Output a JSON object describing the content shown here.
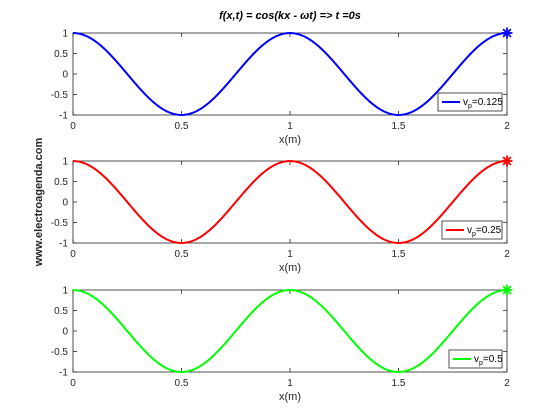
{
  "figure": {
    "title": "f(x,t) = cos(kx - ωt) => t =0s",
    "watermark": "www.electroagenda.com"
  },
  "chart_data": [
    {
      "type": "line",
      "function": "cos(2*pi*x)",
      "x_range": [
        0,
        2
      ],
      "xlim": [
        0,
        2
      ],
      "ylim": [
        -1,
        1
      ],
      "xticks": [
        "0",
        "0.5",
        "1",
        "1.5",
        "2"
      ],
      "yticks": [
        "1",
        "0.5",
        "0",
        "-0.5",
        "-1"
      ],
      "xlabel": "x(m)",
      "grid": false,
      "legend_location": "bottom-right",
      "series": [
        {
          "name": "v",
          "name_sub": "p",
          "name_suffix": "=0.125",
          "color": "#0000ff",
          "x": [
            0,
            0.5,
            1,
            1.5,
            2
          ],
          "y": [
            1,
            -1,
            1,
            -1,
            1
          ]
        }
      ],
      "marker": {
        "x": 2,
        "y": 1,
        "symbol": "asterisk",
        "color": "#0000ff"
      }
    },
    {
      "type": "line",
      "function": "cos(2*pi*x)",
      "x_range": [
        0,
        2
      ],
      "xlim": [
        0,
        2
      ],
      "ylim": [
        -1,
        1
      ],
      "xticks": [
        "0",
        "0.5",
        "1",
        "1.5",
        "2"
      ],
      "yticks": [
        "1",
        "0.5",
        "0",
        "-0.5",
        "-1"
      ],
      "xlabel": "x(m)",
      "grid": false,
      "legend_location": "bottom-right",
      "series": [
        {
          "name": "v",
          "name_sub": "p",
          "name_suffix": "=0.25",
          "color": "#ff0000",
          "x": [
            0,
            0.5,
            1,
            1.5,
            2
          ],
          "y": [
            1,
            -1,
            1,
            -1,
            1
          ]
        }
      ],
      "marker": {
        "x": 2,
        "y": 1,
        "symbol": "asterisk",
        "color": "#ff0000"
      }
    },
    {
      "type": "line",
      "function": "cos(2*pi*x)",
      "x_range": [
        0,
        2
      ],
      "xlim": [
        0,
        2
      ],
      "ylim": [
        -1,
        1
      ],
      "xticks": [
        "0",
        "0.5",
        "1",
        "1.5",
        "2"
      ],
      "yticks": [
        "1",
        "0.5",
        "0",
        "-0.5",
        "-1"
      ],
      "xlabel": "x(m)",
      "grid": false,
      "legend_location": "bottom-right",
      "series": [
        {
          "name": "v",
          "name_sub": "p",
          "name_suffix": "=0.5",
          "color": "#00ff00",
          "x": [
            0,
            0.5,
            1,
            1.5,
            2
          ],
          "y": [
            1,
            -1,
            1,
            -1,
            1
          ]
        }
      ],
      "marker": {
        "x": 2,
        "y": 1,
        "symbol": "asterisk",
        "color": "#00ff00"
      }
    }
  ]
}
